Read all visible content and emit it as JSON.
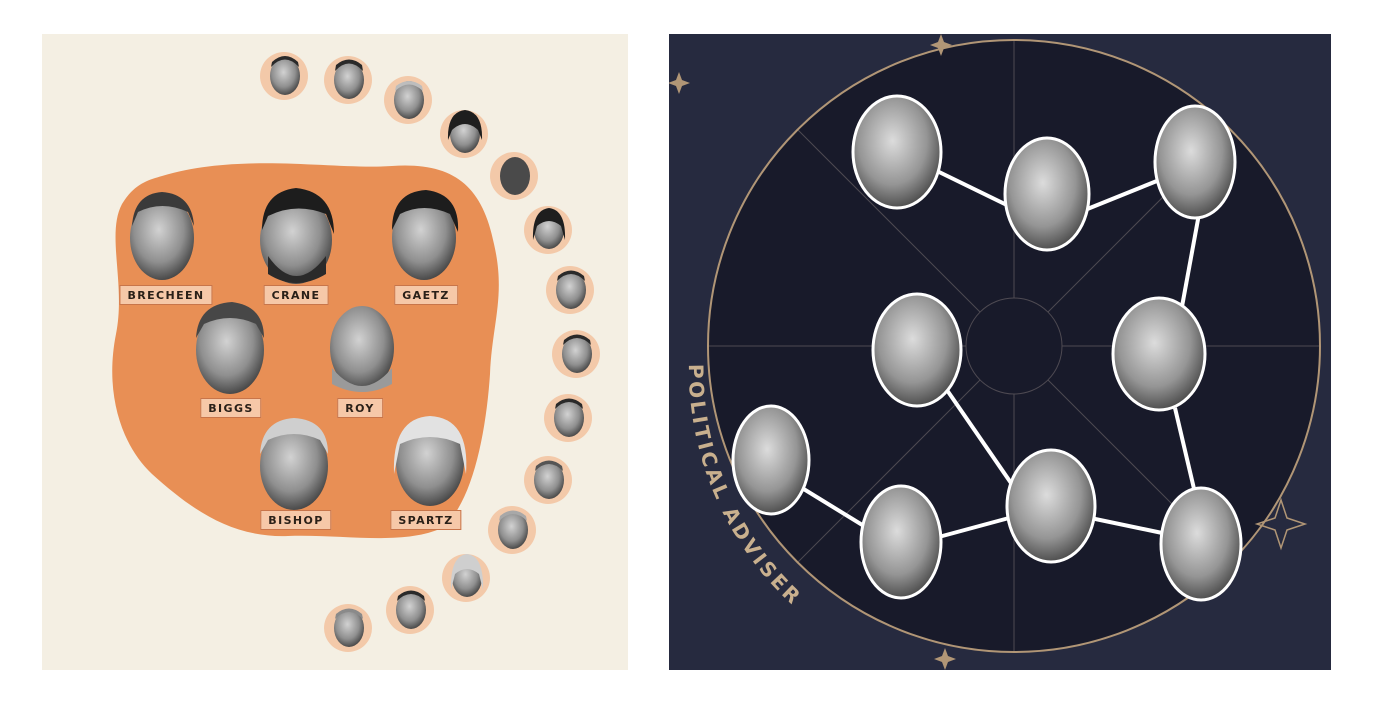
{
  "left_panel": {
    "background": "#f4efe3",
    "blob_color": "#e88f55",
    "tag_color": "#f6c8a8",
    "face_circle_color": "#f3c9a9",
    "labels": [
      "BRECHEEN",
      "CRANE",
      "GAETZ",
      "BIGGS",
      "ROY",
      "BISHOP",
      "SPARTZ"
    ]
  },
  "right_panel": {
    "background": "#262a3f",
    "wheel_color": "#181a2a",
    "ring_color": "#b19676",
    "link_color": "#ffffff",
    "arc_text": "POLITICAL ADVISER"
  }
}
